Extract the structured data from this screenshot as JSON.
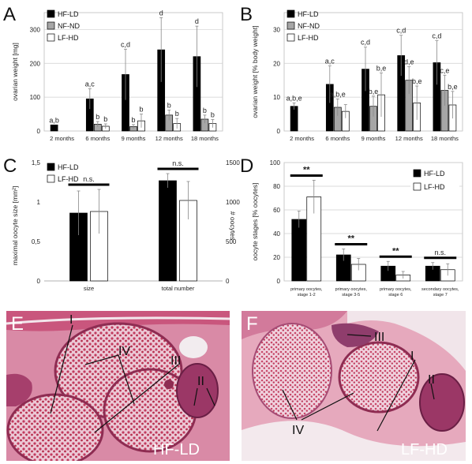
{
  "panels": {
    "A": "A",
    "B": "B",
    "C": "C",
    "D": "D",
    "E": "E",
    "F": "F"
  },
  "colors": {
    "hf_ld": "#000000",
    "nf_nd": "#a6a6a6",
    "lf_hd": "#ffffff"
  },
  "chart_data": [
    {
      "panel": "A",
      "type": "bar",
      "ylabel": "ovarian weight [mg]",
      "ylim": [
        0,
        350
      ],
      "yticks": [
        "0",
        "100",
        "200",
        "300"
      ],
      "categories": [
        "2 months",
        "6 months",
        "9 months",
        "12 months",
        "18 months"
      ],
      "legend": [
        "HF-LD",
        "NF-ND",
        "LF-HD"
      ],
      "legend_position": "top-left",
      "grid": true,
      "series": [
        {
          "name": "HF-LD",
          "values": [
            18,
            95,
            167,
            240,
            220
          ],
          "errors": [
            0,
            30,
            75,
            95,
            90
          ]
        },
        {
          "name": "NF-ND",
          "values": [
            null,
            20,
            13,
            47,
            35
          ],
          "errors": [
            0,
            8,
            6,
            15,
            12
          ]
        },
        {
          "name": "LF-HD",
          "values": [
            null,
            14,
            30,
            22,
            22
          ],
          "errors": [
            0,
            7,
            20,
            15,
            12
          ]
        }
      ],
      "annotations": [
        [
          "a,b",
          "",
          ""
        ],
        [
          "a,c",
          "b",
          "b"
        ],
        [
          "c,d",
          "b",
          "b"
        ],
        [
          "d",
          "b",
          "b"
        ],
        [
          "d",
          "b",
          "b"
        ]
      ]
    },
    {
      "panel": "B",
      "type": "bar",
      "ylabel": "ovarian weight [% body weight]",
      "ylim": [
        0,
        35
      ],
      "yticks": [
        "0",
        "10",
        "20",
        "30"
      ],
      "categories": [
        "2 months",
        "6 months",
        "9 months",
        "12 months",
        "18 months"
      ],
      "legend": [
        "HF-LD",
        "NF-ND",
        "LF-HD"
      ],
      "legend_position": "top-left",
      "grid": true,
      "series": [
        {
          "name": "HF-LD",
          "values": [
            7.3,
            13.8,
            18.3,
            22.3,
            20.2
          ],
          "errors": [
            1,
            5.5,
            6.5,
            6.0,
            6.5
          ]
        },
        {
          "name": "NF-ND",
          "values": [
            null,
            7.0,
            7.3,
            15.0,
            12.0
          ],
          "errors": [
            0,
            2.5,
            3.0,
            4.0,
            4.5
          ]
        },
        {
          "name": "LF-HD",
          "values": [
            null,
            5.8,
            10.7,
            8.3,
            7.7
          ],
          "errors": [
            0,
            2.0,
            6.5,
            5.0,
            4.0
          ]
        }
      ],
      "annotations": [
        [
          "a,b,e",
          "",
          ""
        ],
        [
          "a,c",
          "a,b,e",
          ""
        ],
        [
          "c,d",
          "b,e",
          "b,e"
        ],
        [
          "c,d",
          "d,e",
          "b,e"
        ],
        [
          "c,d",
          "c,e",
          "b,e"
        ]
      ]
    },
    {
      "panel": "C",
      "type": "bar",
      "ylabel": "maximal oocyte size [mm²]",
      "ylabel_right": "# oocytes",
      "ylim": [
        0,
        1.5
      ],
      "ylim_right": [
        0,
        1500
      ],
      "yticks": [
        "0",
        "0,5",
        "1",
        "1,5"
      ],
      "yticks_right": [
        "0",
        "500",
        "1000",
        "1500"
      ],
      "categories": [
        "size",
        "total number"
      ],
      "legend": [
        "HF-LD",
        "LF-HD"
      ],
      "legend_position": "top-left",
      "series": [
        {
          "name": "HF-LD",
          "values": [
            0.86,
            1.27
          ],
          "errors": [
            0.28,
            0.09
          ]
        },
        {
          "name": "LF-HD",
          "values": [
            0.88,
            1.02
          ],
          "errors": [
            0.28,
            0.24
          ]
        }
      ],
      "significance": [
        "n.s.",
        "n.s."
      ]
    },
    {
      "panel": "D",
      "type": "bar",
      "ylabel": "oocyte stages [% oocytes]",
      "ylim": [
        0,
        100
      ],
      "yticks": [
        "0",
        "20",
        "40",
        "60",
        "80",
        "100"
      ],
      "categories": [
        [
          "primary oocytes,",
          "stage 1-2"
        ],
        [
          "primary oocytes,",
          "stage 3-5"
        ],
        [
          "primary oocytes,",
          "stage 6"
        ],
        [
          "secondary oocytes,",
          "stage 7"
        ]
      ],
      "legend": [
        "HF-LD",
        "LF-HD"
      ],
      "legend_position": "top-right",
      "grid": true,
      "series": [
        {
          "name": "HF-LD",
          "values": [
            52,
            22,
            12.5,
            12.5
          ],
          "errors": [
            7,
            5,
            4,
            3
          ]
        },
        {
          "name": "LF-HD",
          "values": [
            71,
            14,
            5,
            9.5
          ],
          "errors": [
            14,
            5,
            3,
            5
          ]
        }
      ],
      "significance": [
        "**",
        "**",
        "**",
        "n.s."
      ]
    }
  ],
  "photos": {
    "E": {
      "label": "HF-LD",
      "markers": [
        "I",
        "IV",
        "III",
        "II"
      ]
    },
    "F": {
      "label": "LF-HD",
      "markers": [
        "III",
        "I",
        "II",
        "IV"
      ]
    }
  }
}
